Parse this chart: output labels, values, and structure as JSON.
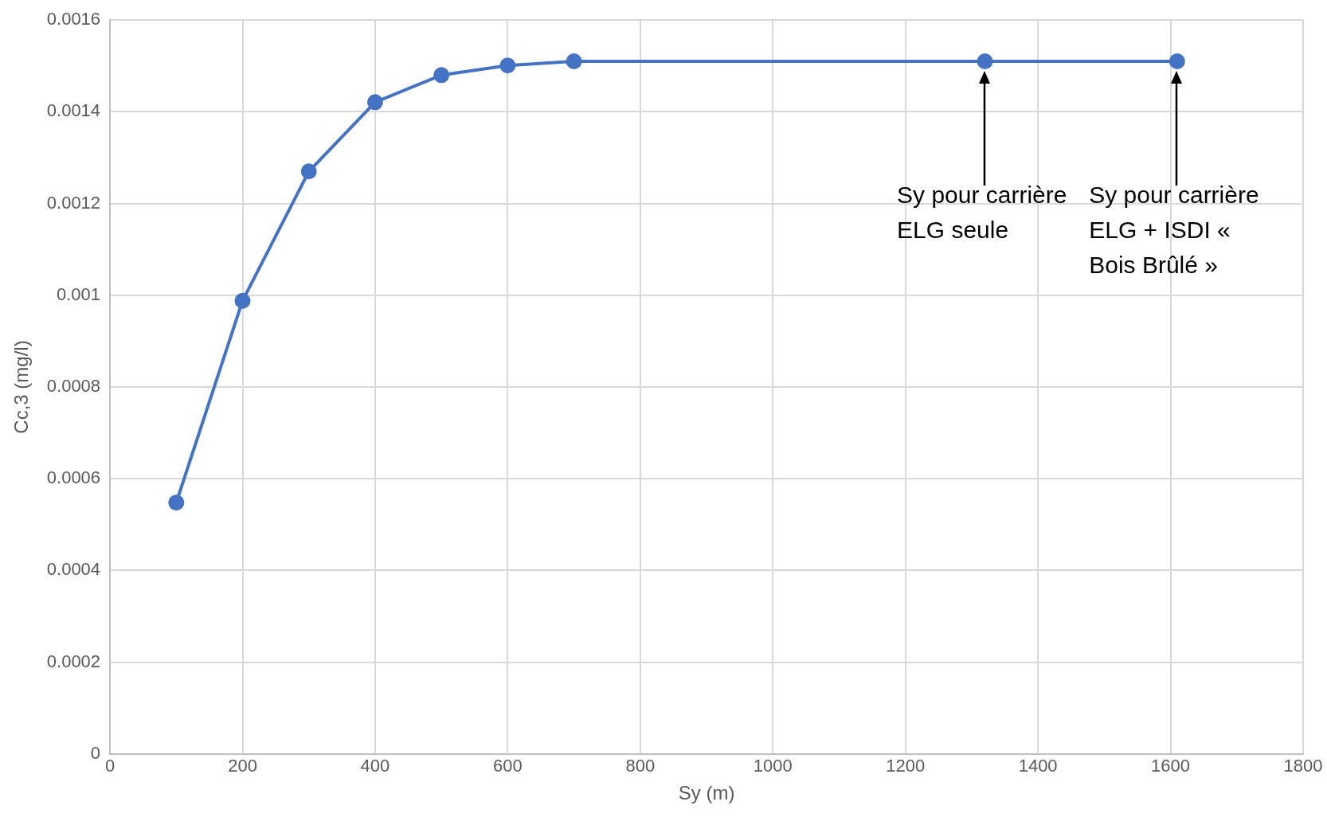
{
  "chart_data": {
    "type": "line",
    "xlabel": "Sy (m)",
    "ylabel": "Cc,3 (mg/l)",
    "x": [
      100,
      200,
      300,
      400,
      500,
      600,
      700,
      1320,
      1610
    ],
    "series": [
      {
        "color": "#4472c4",
        "values": [
          0.000548,
          0.000988,
          0.00127,
          0.001421,
          0.00148,
          0.001501,
          0.00151,
          0.00151,
          0.00151
        ]
      }
    ],
    "xlim": [
      0,
      1800
    ],
    "xticks": [
      0,
      200,
      400,
      600,
      800,
      1000,
      1200,
      1400,
      1600,
      1800
    ],
    "ylim": [
      0,
      0.0016
    ],
    "yticks": [
      0,
      0.0002,
      0.0004,
      0.0006,
      0.0008,
      0.001,
      0.0012,
      0.0014,
      0.0016
    ],
    "grid": true,
    "legend": false,
    "marker": "circle",
    "line_style": "solid",
    "annotations": [
      "Sy pour carrière ELG seule",
      "Sy pour carrière ELG + ISDI « Bois Brûlé »"
    ]
  }
}
